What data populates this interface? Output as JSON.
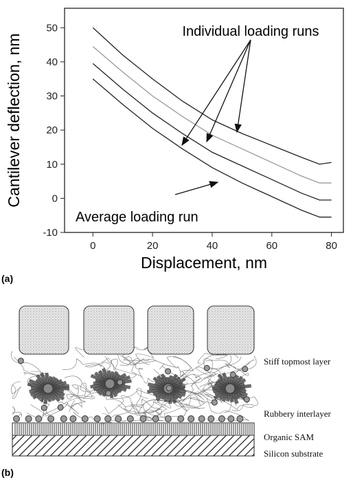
{
  "chart_data": {
    "type": "line",
    "panel_label": "(a)",
    "xlabel": "Displacement, nm",
    "ylabel": "Cantilever deflection, nm",
    "annotations": [
      "Individual loading runs",
      "Average loading run"
    ],
    "x": [
      0,
      10,
      20,
      30,
      40,
      50,
      60,
      70,
      76,
      80
    ],
    "series": [
      {
        "color": "#222222",
        "values": [
          50,
          42,
          35,
          28.5,
          23,
          19,
          15.5,
          12,
          10,
          10.5
        ]
      },
      {
        "color": "#9a9a9a",
        "values": [
          44.5,
          37,
          30,
          24,
          18.5,
          14.5,
          10.5,
          6.5,
          4.5,
          4.5
        ]
      },
      {
        "color": "#222222",
        "values": [
          39.5,
          32,
          25,
          19,
          13.5,
          9.5,
          5.5,
          1.5,
          -0.5,
          -0.5
        ]
      },
      {
        "color": "#222222",
        "values": [
          35,
          27.5,
          20.5,
          14.5,
          9,
          4.5,
          0.5,
          -3.5,
          -5.5,
          -5.5
        ]
      }
    ],
    "xlim": [
      -9.5,
      84
    ],
    "ylim": [
      -10,
      55.7
    ],
    "xticks": [
      0,
      20,
      40,
      60,
      80
    ],
    "yticks": [
      -10,
      0,
      10,
      20,
      30,
      40,
      50
    ]
  },
  "diagram": {
    "panel_label": "(b)",
    "layers": [
      "Stiff topmost layer",
      "Rubbery interlayer",
      "Organic SAM",
      "Silicon substrate"
    ]
  }
}
